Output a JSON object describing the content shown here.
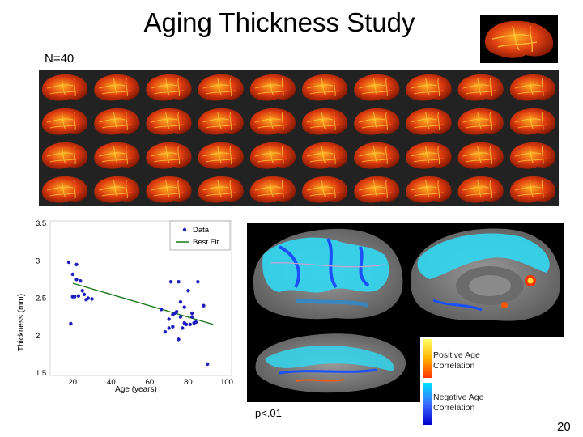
{
  "title": "Aging Thickness Study",
  "sample_label": "N=40",
  "scatter": {
    "chart_data": {
      "type": "scatter",
      "title": "",
      "xlabel": "Age (years)",
      "ylabel": "Thickness (mm)",
      "xlim": [
        10,
        100
      ],
      "ylim": [
        1.5,
        3.5
      ],
      "xticks": [
        "20",
        "40",
        "60",
        "80",
        "100"
      ],
      "yticks": [
        "1.5",
        "2",
        "2.5",
        "3",
        "3.5"
      ],
      "legend_position": "top-right",
      "series": [
        {
          "name": "Data",
          "color": "#1f1fbf",
          "x": [
            18,
            19,
            20,
            20,
            21,
            22,
            22,
            23,
            24,
            25,
            26,
            27,
            28,
            30,
            66,
            68,
            70,
            70,
            71,
            72,
            72,
            73,
            74,
            75,
            75,
            76,
            76,
            77,
            78,
            78,
            79,
            80,
            81,
            82,
            82,
            83,
            84,
            85,
            88,
            90
          ],
          "y": [
            2.98,
            2.16,
            2.52,
            2.82,
            2.52,
            2.75,
            2.95,
            2.53,
            2.73,
            2.6,
            2.55,
            2.48,
            2.5,
            2.49,
            2.35,
            2.05,
            2.22,
            2.1,
            2.72,
            2.12,
            2.28,
            2.3,
            2.32,
            2.72,
            1.95,
            2.25,
            2.45,
            2.1,
            2.17,
            2.38,
            2.15,
            2.6,
            2.15,
            2.3,
            2.25,
            2.17,
            2.18,
            2.72,
            2.4,
            1.62
          ]
        },
        {
          "name": "Best Fit",
          "color": "#1a7a1a",
          "type": "line",
          "x": [
            20,
            93
          ],
          "y": [
            2.7,
            2.15
          ]
        }
      ]
    }
  },
  "legend": {
    "positive": "Positive Age Correlation",
    "negative": "Negative Age Correlation",
    "positive_colors": [
      "#ffff66",
      "#ffb300",
      "#ff3300"
    ],
    "negative_colors": [
      "#00e5ff",
      "#3b6cff",
      "#0000cc"
    ]
  },
  "pvalue": "p<.01",
  "page_number": "20"
}
